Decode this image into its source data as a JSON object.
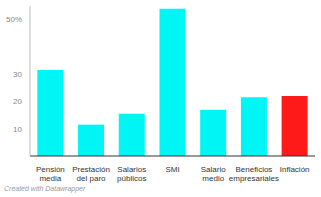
{
  "chart_data": {
    "type": "bar",
    "categories": [
      "Pensión media",
      "Prestación del paro",
      "Salarios públicos",
      "SMI",
      "Salario medio",
      "Beneficios empresariales",
      "Inflación"
    ],
    "values": [
      31.5,
      11.5,
      15.5,
      54,
      17,
      21.5,
      22
    ],
    "colors": [
      "#00f5f5",
      "#00f5f5",
      "#00f5f5",
      "#00f5f5",
      "#00f5f5",
      "#00f5f5",
      "#ff1a1a"
    ],
    "ylim": [
      0,
      55
    ],
    "yticks": [
      10,
      20,
      30,
      {
        "value": 50,
        "label": "50%"
      }
    ],
    "grid": false,
    "note": "Created with Datawrapper"
  }
}
